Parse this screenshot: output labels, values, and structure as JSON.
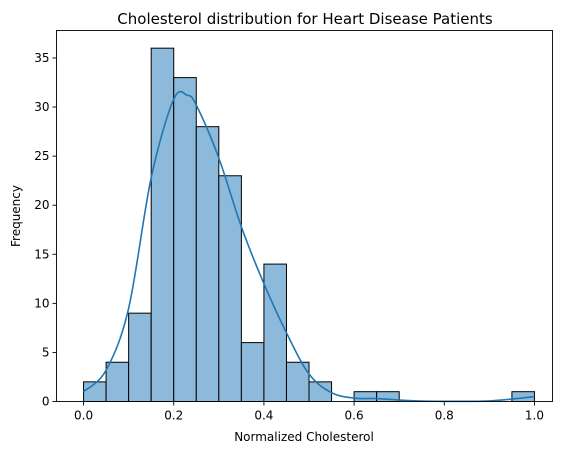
{
  "chart_data": {
    "type": "bar",
    "title": "Cholesterol distribution for Heart Disease Patients",
    "xlabel": "Normalized Cholesterol",
    "ylabel": "Frequency",
    "xlim": [
      -0.06,
      1.04
    ],
    "ylim": [
      0,
      37.8
    ],
    "xticks": [
      0.0,
      0.2,
      0.4,
      0.6,
      0.8,
      1.0
    ],
    "xtick_labels": [
      "0.0",
      "0.2",
      "0.4",
      "0.6",
      "0.8",
      "1.0"
    ],
    "yticks": [
      0,
      5,
      10,
      15,
      20,
      25,
      30,
      35
    ],
    "ytick_labels": [
      "0",
      "5",
      "10",
      "15",
      "20",
      "25",
      "30",
      "35"
    ],
    "grid": false,
    "bin_edges": [
      0.0,
      0.05,
      0.1,
      0.15,
      0.2,
      0.25,
      0.3,
      0.35,
      0.4,
      0.45,
      0.5,
      0.55,
      0.6,
      0.65,
      0.7,
      0.75,
      0.8,
      0.85,
      0.9,
      0.95,
      1.0
    ],
    "values": [
      2,
      4,
      9,
      36,
      33,
      28,
      23,
      6,
      14,
      4,
      2,
      0,
      1,
      1,
      0,
      0,
      0,
      0,
      0,
      1
    ],
    "kde": {
      "x": [
        0.0,
        0.05,
        0.1,
        0.15,
        0.2,
        0.23,
        0.25,
        0.3,
        0.35,
        0.4,
        0.45,
        0.5,
        0.55,
        0.6,
        0.65,
        0.7,
        0.75,
        0.8,
        0.85,
        0.9,
        0.95,
        1.0
      ],
      "y": [
        1.0,
        3.2,
        9.5,
        22.8,
        30.8,
        31.2,
        30.2,
        24.8,
        17.8,
        12.0,
        7.0,
        2.8,
        0.9,
        0.35,
        0.3,
        0.15,
        0.05,
        0.02,
        0.02,
        0.06,
        0.25,
        0.5
      ]
    },
    "colors": {
      "bar_fill": "#8dbadb",
      "bar_edge": "#000000",
      "kde_line": "#1f77b4"
    }
  }
}
